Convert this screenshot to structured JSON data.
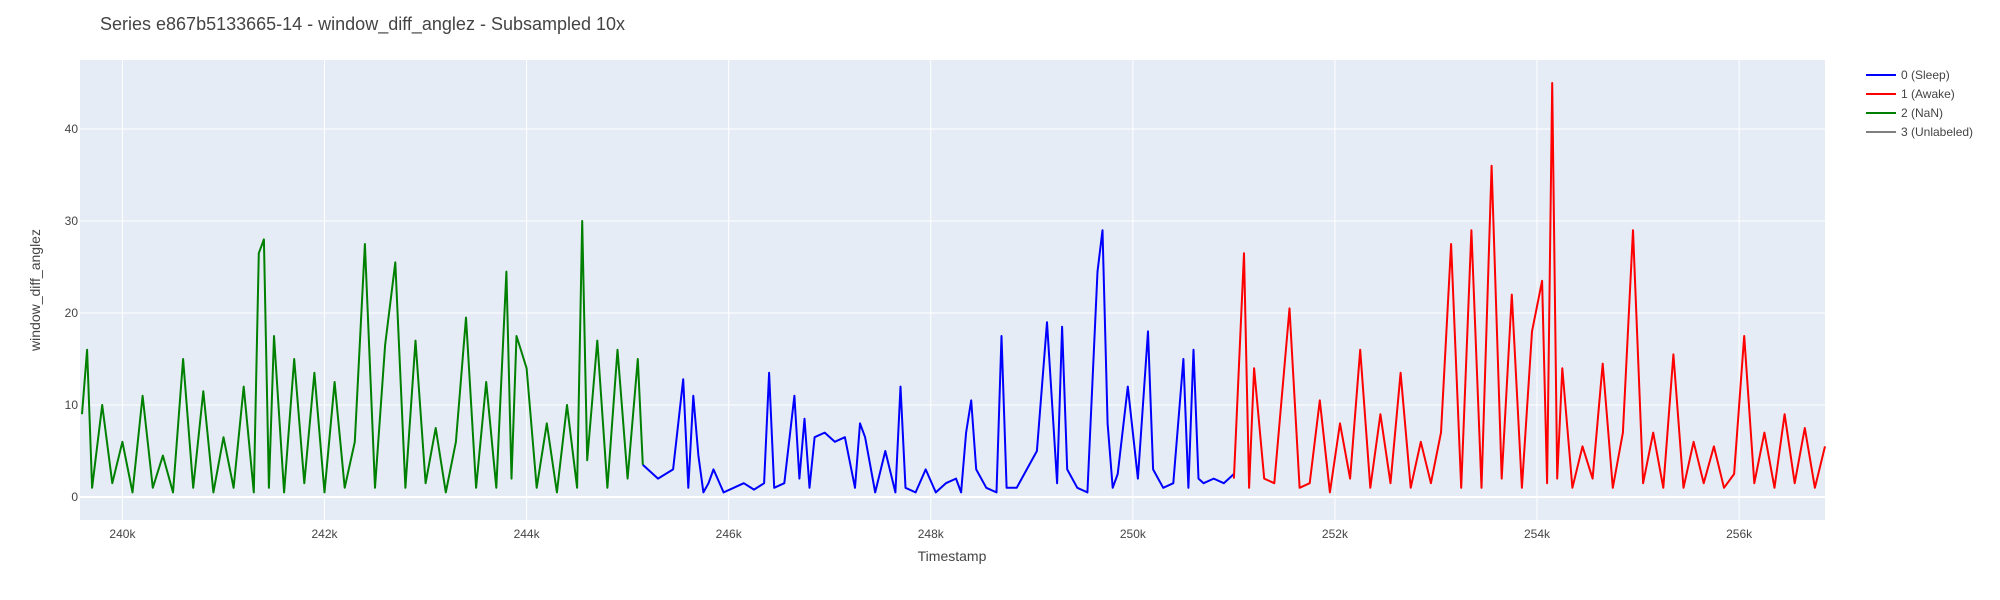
{
  "chart_data": {
    "type": "line",
    "title": "Series e867b5133665-14 - window_diff_anglez - Subsampled 10x",
    "xlabel": "Timestamp",
    "ylabel": "window_diff_anglez",
    "xlim": [
      239580,
      256850
    ],
    "ylim": [
      -2.5,
      47.5
    ],
    "x_ticks": [
      240000,
      242000,
      244000,
      246000,
      248000,
      250000,
      252000,
      254000,
      256000
    ],
    "x_tick_labels": [
      "240k",
      "242k",
      "244k",
      "246k",
      "248k",
      "250k",
      "252k",
      "254k",
      "256k"
    ],
    "y_ticks": [
      0,
      10,
      20,
      30,
      40
    ],
    "y_tick_labels": [
      "0",
      "10",
      "20",
      "30",
      "40"
    ],
    "grid": true,
    "legend_position": "top-right",
    "series": [
      {
        "name": "0 (Sleep)",
        "color": "#0000ff",
        "x": [
          245150,
          245300,
          245450,
          245550,
          245600,
          245650,
          245700,
          245750,
          245800,
          245850,
          245950,
          246050,
          246150,
          246250,
          246350,
          246400,
          246450,
          246550,
          246650,
          246700,
          246750,
          246800,
          246850,
          246950,
          247050,
          247150,
          247250,
          247300,
          247350,
          247450,
          247550,
          247650,
          247700,
          247750,
          247850,
          247950,
          248050,
          248150,
          248250,
          248300,
          248350,
          248400,
          248450,
          248550,
          248650,
          248700,
          248750,
          248850,
          248950,
          249050,
          249150,
          249250,
          249300,
          249350,
          249450,
          249550,
          249650,
          249700,
          249750,
          249800,
          249850,
          249950,
          250050,
          250150,
          250200,
          250300,
          250400,
          250500,
          250550,
          250600,
          250650,
          250700,
          250800,
          250900,
          251000
        ],
        "y": [
          3.5,
          2.0,
          3.0,
          12.8,
          1.0,
          11.0,
          4.5,
          0.5,
          1.5,
          3.0,
          0.5,
          1.0,
          1.5,
          0.8,
          1.5,
          13.5,
          1.0,
          1.5,
          11.0,
          2.0,
          8.5,
          1.0,
          6.5,
          7.0,
          6.0,
          6.5,
          1.0,
          8.0,
          6.5,
          0.5,
          5.0,
          0.5,
          12.0,
          1.0,
          0.5,
          3.0,
          0.5,
          1.5,
          2.0,
          0.5,
          7.0,
          10.5,
          3.0,
          1.0,
          0.5,
          17.5,
          1.0,
          1.0,
          3.0,
          5.0,
          19.0,
          1.5,
          18.5,
          3.0,
          1.0,
          0.5,
          24.5,
          29.0,
          8.0,
          1.0,
          2.5,
          12.0,
          2.0,
          18.0,
          3.0,
          1.0,
          1.5,
          15.0,
          1.0,
          16.0,
          2.0,
          1.5,
          2.0,
          1.5,
          2.5
        ]
      },
      {
        "name": "1 (Awake)",
        "color": "#ff0000",
        "x": [
          251000,
          251100,
          251150,
          251200,
          251300,
          251400,
          251550,
          251650,
          251750,
          251850,
          251950,
          252050,
          252150,
          252250,
          252350,
          252450,
          252550,
          252650,
          252750,
          252850,
          252950,
          253050,
          253150,
          253250,
          253350,
          253450,
          253550,
          253650,
          253750,
          253850,
          253950,
          254050,
          254100,
          254150,
          254200,
          254250,
          254350,
          254450,
          254550,
          254650,
          254750,
          254850,
          254950,
          255050,
          255150,
          255250,
          255350,
          255450,
          255550,
          255650,
          255750,
          255850,
          255950,
          256050,
          256150,
          256250,
          256350,
          256450,
          256550,
          256650,
          256750,
          256850
        ],
        "y": [
          2.0,
          26.5,
          1.0,
          14.0,
          2.0,
          1.5,
          20.5,
          1.0,
          1.5,
          10.5,
          0.5,
          8.0,
          2.0,
          16.0,
          1.0,
          9.0,
          1.5,
          13.5,
          1.0,
          6.0,
          1.5,
          7.0,
          27.5,
          1.0,
          29.0,
          1.0,
          36.0,
          2.0,
          22.0,
          1.0,
          18.0,
          23.5,
          1.5,
          45.0,
          2.0,
          14.0,
          1.0,
          5.5,
          2.0,
          14.5,
          1.0,
          7.0,
          29.0,
          1.5,
          7.0,
          1.0,
          15.5,
          1.0,
          6.0,
          1.5,
          5.5,
          1.0,
          2.5,
          17.5,
          1.5,
          7.0,
          1.0,
          9.0,
          1.5,
          7.5,
          1.0,
          5.5
        ]
      },
      {
        "name": "2 (NaN)",
        "color": "#008000",
        "x": [
          239600,
          239650,
          239700,
          239800,
          239900,
          240000,
          240100,
          240200,
          240300,
          240400,
          240500,
          240600,
          240700,
          240800,
          240900,
          241000,
          241100,
          241200,
          241300,
          241350,
          241400,
          241450,
          241500,
          241600,
          241700,
          241800,
          241900,
          242000,
          242100,
          242200,
          242300,
          242400,
          242500,
          242600,
          242700,
          242800,
          242900,
          243000,
          243100,
          243200,
          243300,
          243400,
          243500,
          243600,
          243700,
          243800,
          243850,
          243900,
          244000,
          244100,
          244200,
          244300,
          244400,
          244500,
          244550,
          244600,
          244700,
          244800,
          244900,
          245000,
          245100,
          245150
        ],
        "y": [
          9.0,
          16.0,
          1.0,
          10.0,
          1.5,
          6.0,
          0.5,
          11.0,
          1.0,
          4.5,
          0.5,
          15.0,
          1.0,
          11.5,
          0.5,
          6.5,
          1.0,
          12.0,
          0.5,
          26.5,
          28.0,
          1.0,
          17.5,
          0.5,
          15.0,
          1.5,
          13.5,
          0.5,
          12.5,
          1.0,
          6.0,
          27.5,
          1.0,
          16.5,
          25.5,
          1.0,
          17.0,
          1.5,
          7.5,
          0.5,
          6.0,
          19.5,
          1.0,
          12.5,
          1.0,
          24.5,
          2.0,
          17.5,
          14.0,
          1.0,
          8.0,
          0.5,
          10.0,
          1.0,
          30.0,
          4.0,
          17.0,
          1.0,
          16.0,
          2.0,
          15.0,
          3.5
        ]
      },
      {
        "name": "3 (Unlabeled)",
        "color": "#808080",
        "x": [],
        "y": []
      }
    ]
  }
}
